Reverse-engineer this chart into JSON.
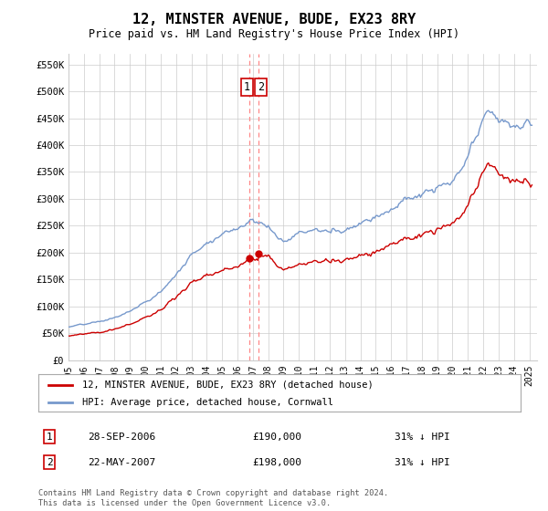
{
  "title": "12, MINSTER AVENUE, BUDE, EX23 8RY",
  "subtitle": "Price paid vs. HM Land Registry's House Price Index (HPI)",
  "ylim": [
    0,
    570000
  ],
  "xlim_start": 1995.0,
  "xlim_end": 2025.5,
  "hpi_color": "#7799cc",
  "price_color": "#cc0000",
  "dashed_line_color": "#ff8888",
  "transaction1_date": 2006.75,
  "transaction2_date": 2007.38,
  "transaction1_price": 190000,
  "transaction2_price": 198000,
  "legend_house_label": "12, MINSTER AVENUE, BUDE, EX23 8RY (detached house)",
  "legend_hpi_label": "HPI: Average price, detached house, Cornwall",
  "note1_date": "28-SEP-2006",
  "note1_price": "£190,000",
  "note1_hpi": "31% ↓ HPI",
  "note2_date": "22-MAY-2007",
  "note2_price": "£198,000",
  "note2_hpi": "31% ↓ HPI",
  "footer": "Contains HM Land Registry data © Crown copyright and database right 2024.\nThis data is licensed under the Open Government Licence v3.0.",
  "background_color": "#ffffff",
  "grid_color": "#cccccc"
}
